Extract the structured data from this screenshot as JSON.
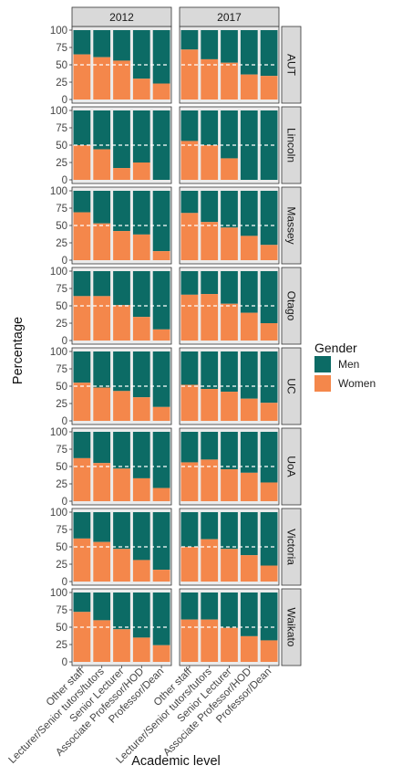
{
  "chart_data": {
    "type": "bar",
    "stacked": true,
    "facet_columns": [
      "2012",
      "2017"
    ],
    "facet_rows": [
      "AUT",
      "Lincoln",
      "Massey",
      "Otago",
      "UC",
      "UoA",
      "Victoria",
      "Waikato"
    ],
    "categories": [
      "Other staff",
      "Lecturer/Senior tutors/tutors",
      "Senior Lecturer",
      "Associate Professor/HOD",
      "Professor/Dean"
    ],
    "xlabel": "Academic level",
    "ylabel": "Percentage",
    "ylim": [
      0,
      100
    ],
    "yticks": [
      "0",
      "25",
      "50",
      "75",
      "100"
    ],
    "reference_line": 50,
    "legend": {
      "title": "Gender",
      "position": "right",
      "entries": [
        {
          "name": "Men",
          "color": "#0c6b65"
        },
        {
          "name": "Women",
          "color": "#f4874b"
        }
      ]
    },
    "colors": {
      "men": "#0c6b65",
      "women": "#f4874b",
      "panel_bg": "#ebebeb",
      "strip_bg": "#d9d9d9",
      "refline": "#ffffff"
    },
    "series_women": {
      "AUT": {
        "2012": [
          65,
          61,
          56,
          30,
          23
        ],
        "2017": [
          72,
          58,
          53,
          36,
          34
        ]
      },
      "Lincoln": {
        "2012": [
          50,
          44,
          17,
          25,
          0
        ],
        "2017": [
          56,
          50,
          31,
          0,
          0
        ]
      },
      "Massey": {
        "2012": [
          69,
          53,
          42,
          37,
          13
        ],
        "2017": [
          68,
          55,
          47,
          35,
          22
        ]
      },
      "Otago": {
        "2012": [
          64,
          64,
          51,
          34,
          16
        ],
        "2017": [
          66,
          67,
          53,
          40,
          25
        ]
      },
      "UC": {
        "2012": [
          55,
          48,
          43,
          34,
          20
        ],
        "2017": [
          52,
          46,
          42,
          32,
          26
        ]
      },
      "UoA": {
        "2012": [
          62,
          55,
          47,
          33,
          19
        ],
        "2017": [
          56,
          60,
          46,
          41,
          27
        ]
      },
      "Victoria": {
        "2012": [
          62,
          57,
          47,
          31,
          17
        ],
        "2017": [
          50,
          61,
          47,
          38,
          23
        ]
      },
      "Waikato": {
        "2012": [
          72,
          60,
          47,
          35,
          24
        ],
        "2017": [
          61,
          61,
          49,
          37,
          31
        ]
      }
    }
  }
}
